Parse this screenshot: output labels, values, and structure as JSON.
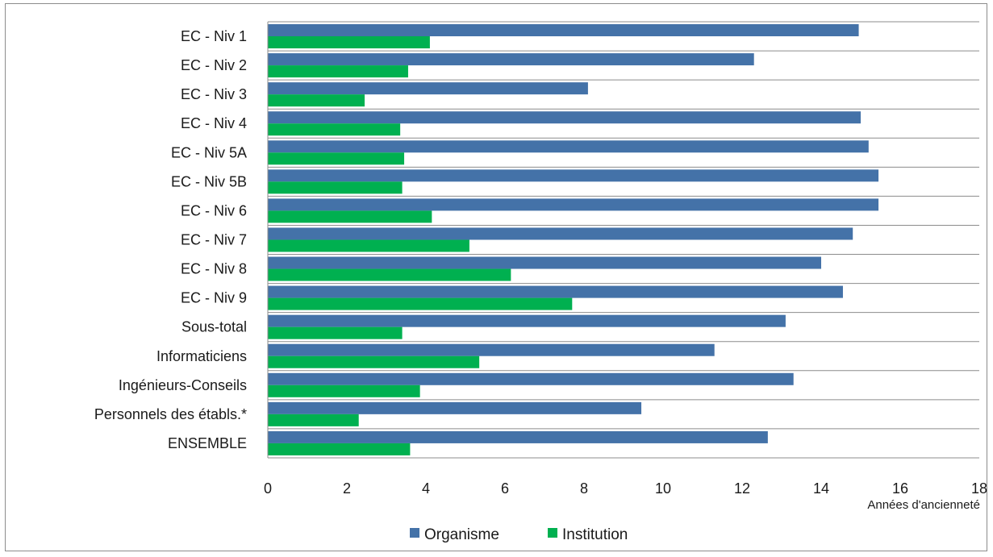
{
  "chart_data": {
    "type": "bar",
    "orientation": "horizontal",
    "categories": [
      "EC - Niv 1",
      "EC - Niv 2",
      "EC - Niv 3",
      "EC - Niv 4",
      "EC - Niv 5A",
      "EC - Niv 5B",
      "EC - Niv 6",
      "EC - Niv 7",
      "EC - Niv 8",
      "EC - Niv 9",
      "Sous-total",
      "Informaticiens",
      "Ingénieurs-Conseils",
      "Personnels des établs.*",
      "ENSEMBLE"
    ],
    "series": [
      {
        "name": "Organisme",
        "color": "#4472a8",
        "values": [
          14.95,
          12.3,
          8.1,
          15.0,
          15.2,
          15.45,
          15.45,
          14.8,
          14.0,
          14.55,
          13.1,
          11.3,
          13.3,
          9.45,
          12.65
        ]
      },
      {
        "name": "Institution",
        "color": "#00b050",
        "values": [
          4.1,
          3.55,
          2.45,
          3.35,
          3.45,
          3.4,
          4.15,
          5.1,
          6.15,
          7.7,
          3.4,
          5.35,
          3.85,
          2.3,
          3.6
        ]
      }
    ],
    "xlabel": "Années d'ancienneté",
    "xlim": [
      0,
      18
    ],
    "xticks": [
      0,
      2,
      4,
      6,
      8,
      10,
      12,
      14,
      16,
      18
    ],
    "grid": "horizontal category separators",
    "legend": "bottom-center"
  }
}
